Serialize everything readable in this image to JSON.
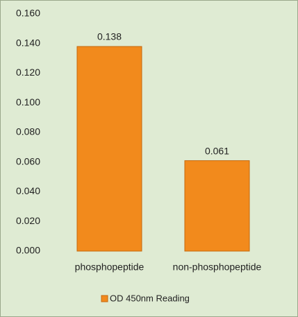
{
  "chart_data": {
    "type": "bar",
    "categories": [
      "phosphopeptide",
      "non-phosphopeptide"
    ],
    "series": [
      {
        "name": "OD 450nm Reading",
        "color": "#f28a1c",
        "values": [
          0.138,
          0.061
        ]
      }
    ],
    "ylim": [
      0,
      0.16
    ],
    "yticks": [
      {
        "value": 0,
        "label": "0.000"
      },
      {
        "value": 0.02,
        "label": "0.020"
      },
      {
        "value": 0.04,
        "label": "0.040"
      },
      {
        "value": 0.06,
        "label": "0.060"
      },
      {
        "value": 0.08,
        "label": "0.080"
      },
      {
        "value": 0.1,
        "label": "0.100"
      },
      {
        "value": 0.12,
        "label": "0.120"
      },
      {
        "value": 0.14,
        "label": "0.140"
      },
      {
        "value": 0.16,
        "label": "0.160"
      }
    ],
    "grid": false,
    "legend": "bottom"
  }
}
